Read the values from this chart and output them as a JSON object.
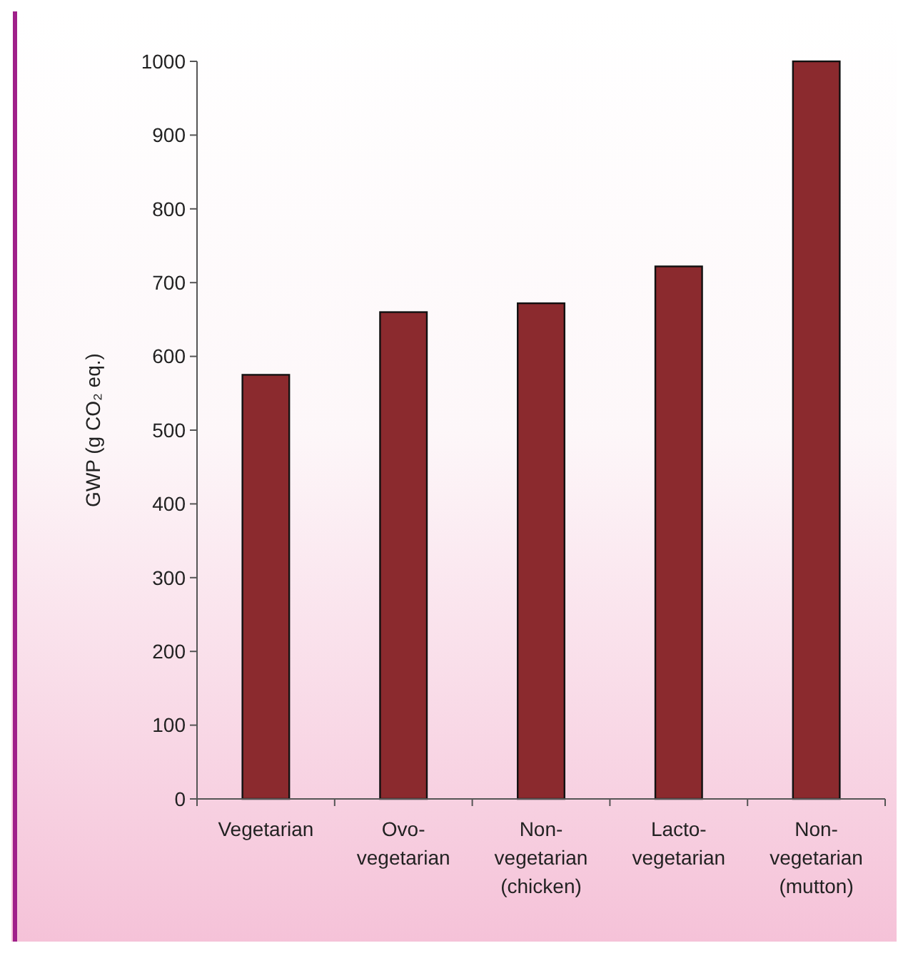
{
  "chart_data": {
    "type": "bar",
    "ylabel": "GWP (g CO₂ eq.)",
    "categories": [
      "Vegetarian",
      "Ovo-vegetarian",
      "Non-vegetarian (chicken)",
      "Lacto-vegetarian",
      "Non-vegetarian (mutton)"
    ],
    "values": [
      575,
      660,
      672,
      722,
      1000
    ],
    "color": "#8b2a2e",
    "ylim": [
      0,
      1000
    ],
    "yticks": [
      0,
      100,
      200,
      300,
      400,
      500,
      600,
      700,
      800,
      900,
      1000
    ],
    "grid": false
  }
}
